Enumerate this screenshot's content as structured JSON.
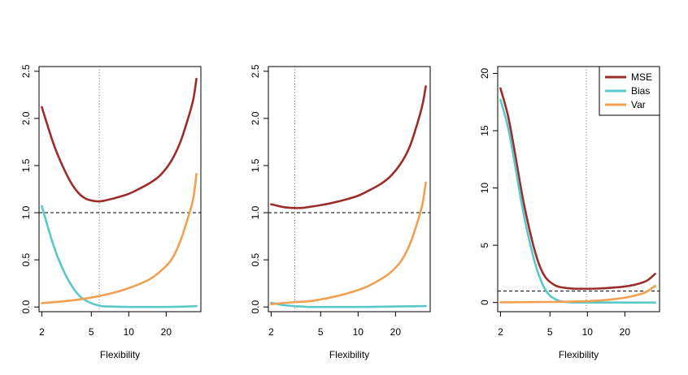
{
  "colors": {
    "mse": "#9b2d2b",
    "bias": "#5ac8c8",
    "var": "#f0a050"
  },
  "chart_data": [
    {
      "type": "line",
      "xlabel": "Flexibility",
      "ylabel": "",
      "x_scale": "log",
      "xlim": [
        1.9,
        38
      ],
      "ylim": [
        -0.05,
        2.55
      ],
      "xticks": [
        {
          "v": 2,
          "label": "2"
        },
        {
          "v": 5,
          "label": "5"
        },
        {
          "v": 10,
          "label": "10"
        },
        {
          "v": 20,
          "label": "20"
        }
      ],
      "yticks": [
        {
          "v": 0,
          "label": "0.0"
        },
        {
          "v": 0.5,
          "label": "0.5"
        },
        {
          "v": 1,
          "label": "1.0"
        },
        {
          "v": 1.5,
          "label": "1.5"
        },
        {
          "v": 2,
          "label": "2.0"
        },
        {
          "v": 2.5,
          "label": "2.5"
        }
      ],
      "hline": 1.0,
      "vline": 5.8,
      "series": [
        {
          "key": "mse",
          "x": [
            2,
            2.5,
            3,
            3.5,
            4,
            4.5,
            5,
            5.8,
            7,
            8.5,
            10,
            12,
            15,
            18,
            22,
            26,
            30,
            33,
            35
          ],
          "y": [
            2.12,
            1.72,
            1.47,
            1.3,
            1.2,
            1.15,
            1.13,
            1.12,
            1.14,
            1.17,
            1.2,
            1.25,
            1.32,
            1.4,
            1.55,
            1.75,
            2.0,
            2.2,
            2.42
          ]
        },
        {
          "key": "bias",
          "x": [
            2,
            2.5,
            3,
            3.5,
            4,
            4.5,
            5,
            6,
            7,
            10,
            15,
            20,
            30,
            35
          ],
          "y": [
            1.07,
            0.64,
            0.38,
            0.22,
            0.12,
            0.07,
            0.04,
            0.01,
            0.005,
            0.0,
            0.0,
            0.0,
            0.005,
            0.01
          ]
        },
        {
          "key": "var",
          "x": [
            2,
            3,
            4,
            5,
            6,
            8,
            10,
            12,
            15,
            18,
            22,
            26,
            30,
            33,
            35
          ],
          "y": [
            0.04,
            0.06,
            0.08,
            0.1,
            0.12,
            0.16,
            0.2,
            0.24,
            0.3,
            0.38,
            0.5,
            0.7,
            0.95,
            1.15,
            1.41
          ]
        }
      ]
    },
    {
      "type": "line",
      "xlabel": "Flexibility",
      "ylabel": "",
      "x_scale": "log",
      "xlim": [
        1.9,
        38
      ],
      "ylim": [
        -0.05,
        2.55
      ],
      "xticks": [
        {
          "v": 2,
          "label": "2"
        },
        {
          "v": 5,
          "label": "5"
        },
        {
          "v": 10,
          "label": "10"
        },
        {
          "v": 20,
          "label": "20"
        }
      ],
      "yticks": [
        {
          "v": 0,
          "label": "0.0"
        },
        {
          "v": 0.5,
          "label": "0.5"
        },
        {
          "v": 1,
          "label": "1.0"
        },
        {
          "v": 1.5,
          "label": "1.5"
        },
        {
          "v": 2,
          "label": "2.0"
        },
        {
          "v": 2.5,
          "label": "2.5"
        }
      ],
      "hline": 1.0,
      "vline": 3.1,
      "series": [
        {
          "key": "mse",
          "x": [
            2,
            2.5,
            3,
            3.5,
            4,
            5,
            6,
            8,
            10,
            12,
            15,
            18,
            22,
            26,
            30,
            33,
            35
          ],
          "y": [
            1.09,
            1.06,
            1.05,
            1.05,
            1.06,
            1.08,
            1.1,
            1.14,
            1.18,
            1.23,
            1.3,
            1.38,
            1.52,
            1.7,
            1.95,
            2.15,
            2.34
          ]
        },
        {
          "key": "bias",
          "x": [
            2,
            2.5,
            3,
            3.5,
            4,
            5,
            10,
            20,
            35
          ],
          "y": [
            0.045,
            0.02,
            0.01,
            0.005,
            0.0,
            0.0,
            0.0,
            0.005,
            0.01
          ]
        },
        {
          "key": "var",
          "x": [
            2,
            3,
            4,
            5,
            6,
            8,
            10,
            12,
            15,
            18,
            22,
            26,
            30,
            33,
            35
          ],
          "y": [
            0.03,
            0.05,
            0.06,
            0.08,
            0.1,
            0.14,
            0.18,
            0.22,
            0.29,
            0.36,
            0.48,
            0.66,
            0.9,
            1.1,
            1.32
          ]
        }
      ]
    },
    {
      "type": "line",
      "xlabel": "Flexibility",
      "ylabel": "",
      "x_scale": "log",
      "xlim": [
        1.9,
        38
      ],
      "ylim": [
        -0.8,
        20.6
      ],
      "xticks": [
        {
          "v": 2,
          "label": "2"
        },
        {
          "v": 5,
          "label": "5"
        },
        {
          "v": 10,
          "label": "10"
        },
        {
          "v": 20,
          "label": "20"
        }
      ],
      "yticks": [
        {
          "v": 0,
          "label": "0"
        },
        {
          "v": 5,
          "label": "5"
        },
        {
          "v": 10,
          "label": "10"
        },
        {
          "v": 15,
          "label": "15"
        },
        {
          "v": 20,
          "label": "20"
        }
      ],
      "hline": 1.0,
      "vline": 9.8,
      "legend": {
        "position": "top-right",
        "items": [
          {
            "key": "mse",
            "label": "MSE"
          },
          {
            "key": "bias",
            "label": "Bias"
          },
          {
            "key": "var",
            "label": "Var"
          }
        ]
      },
      "series": [
        {
          "key": "mse",
          "x": [
            2,
            2.3,
            2.6,
            3,
            3.4,
            3.8,
            4.2,
            4.6,
            5,
            5.5,
            6,
            7,
            8,
            10,
            12,
            15,
            20,
            25,
            30,
            35
          ],
          "y": [
            18.7,
            16.3,
            13.2,
            9.3,
            6.5,
            4.4,
            3.0,
            2.2,
            1.8,
            1.5,
            1.35,
            1.25,
            1.2,
            1.2,
            1.22,
            1.28,
            1.4,
            1.6,
            1.9,
            2.5
          ]
        },
        {
          "key": "bias",
          "x": [
            2,
            2.3,
            2.6,
            3,
            3.4,
            3.8,
            4.2,
            4.6,
            5,
            5.5,
            6,
            7,
            8,
            10,
            20,
            35
          ],
          "y": [
            17.7,
            15.3,
            12.2,
            8.3,
            5.5,
            3.4,
            2.0,
            1.1,
            0.6,
            0.3,
            0.12,
            0.03,
            0.0,
            0.0,
            0.0,
            0.0
          ]
        },
        {
          "key": "var",
          "x": [
            2,
            5,
            10,
            15,
            20,
            25,
            30,
            35
          ],
          "y": [
            0.02,
            0.05,
            0.12,
            0.25,
            0.42,
            0.65,
            0.95,
            1.45
          ]
        }
      ]
    }
  ]
}
